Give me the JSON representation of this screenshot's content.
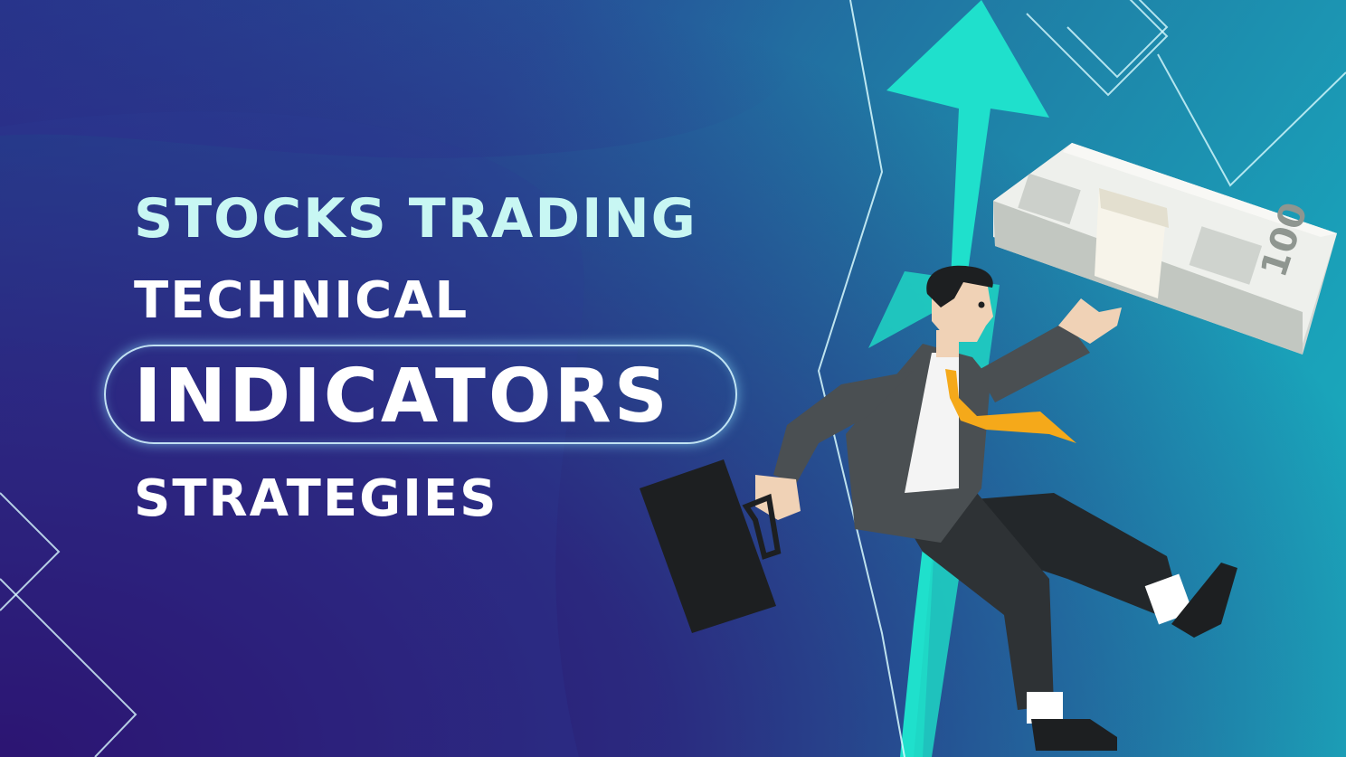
{
  "headline": {
    "line1": "STOCKS TRADING",
    "line2": "TECHNICAL",
    "line3": "INDICATORS",
    "line4": "STRATEGIES"
  },
  "banknote": {
    "denomination": "100"
  },
  "colors": {
    "background_dark": "#2a0e6b",
    "background_teal": "#19b3c0",
    "arrow": "#1fe0cc",
    "title_light_cyan": "#c8f7f3",
    "text_white": "#ffffff",
    "suit": "#4a4f52",
    "tie": "#f5a91a",
    "briefcase": "#1d1f21"
  }
}
